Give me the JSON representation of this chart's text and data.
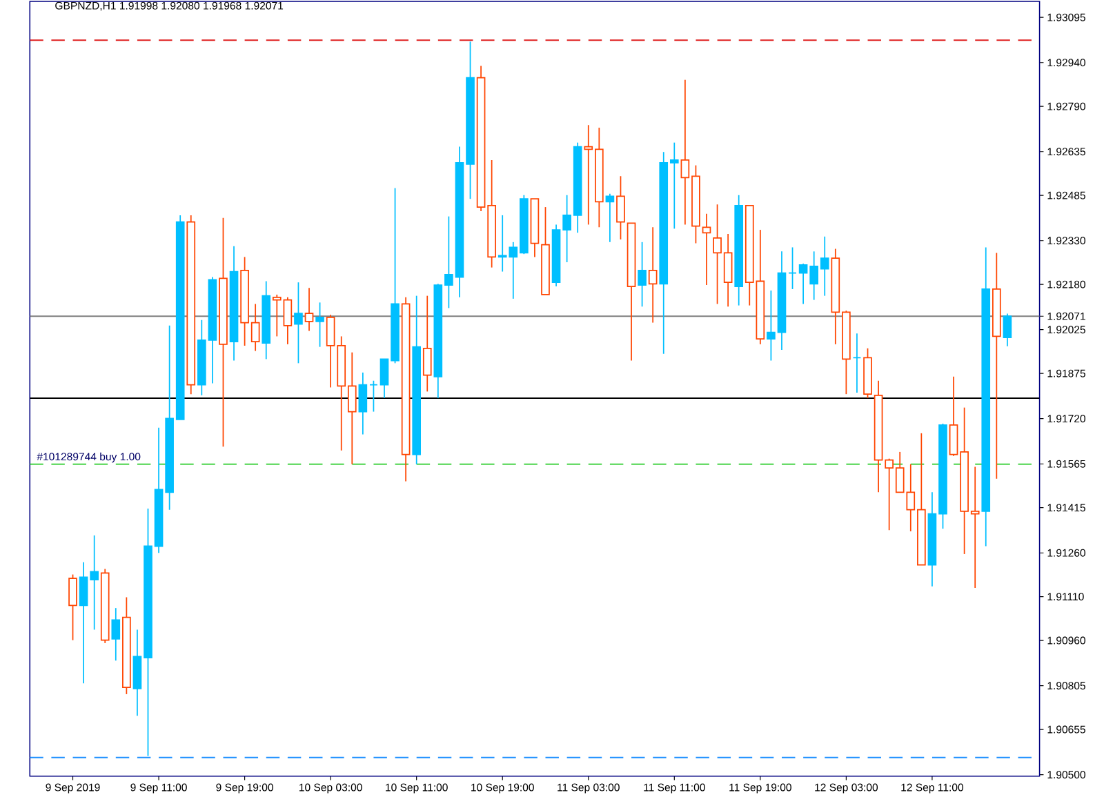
{
  "chart_data": {
    "type": "candlestick",
    "title": "GBPNZD,H1  1.91998 1.92080 1.91968 1.92071",
    "categories": [
      "9 Sep 2019",
      null,
      null,
      null,
      null,
      null,
      null,
      null,
      "9 Sep 11:00",
      null,
      null,
      null,
      null,
      null,
      null,
      null,
      "9 Sep 19:00",
      null,
      null,
      null,
      null,
      null,
      null,
      null,
      "10 Sep 03:00",
      null,
      null,
      null,
      null,
      null,
      null,
      null,
      "10 Sep 11:00",
      null,
      null,
      null,
      null,
      null,
      null,
      null,
      "10 Sep 19:00",
      null,
      null,
      null,
      null,
      null,
      null,
      null,
      "11 Sep 03:00",
      null,
      null,
      null,
      null,
      null,
      null,
      null,
      "11 Sep 11:00",
      null,
      null,
      null,
      null,
      null,
      null,
      null,
      "11 Sep 19:00",
      null,
      null,
      null,
      null,
      null,
      null,
      null,
      "12 Sep 03:00",
      null,
      null,
      null,
      null,
      null,
      null,
      null,
      "12 Sep 11:00",
      null,
      null,
      null,
      null,
      null,
      null,
      null
    ],
    "ohlc": [
      [
        1.91173,
        1.91186,
        1.90961,
        1.9108
      ],
      [
        1.9108,
        1.91228,
        1.90813,
        1.91177
      ],
      [
        1.91168,
        1.9132,
        1.90997,
        1.91196
      ],
      [
        1.91191,
        1.91205,
        1.90951,
        1.90961
      ],
      [
        1.90965,
        1.91071,
        1.90891,
        1.9103
      ],
      [
        1.91039,
        1.91108,
        1.90776,
        1.90799
      ],
      [
        1.90795,
        1.90997,
        1.90702,
        1.90905
      ],
      [
        1.90901,
        1.91412,
        1.90564,
        1.91283
      ],
      [
        1.91283,
        1.91689,
        1.9126,
        1.91477
      ],
      [
        1.91468,
        1.92039,
        1.91408,
        1.91721
      ],
      [
        1.91717,
        1.92417,
        1.91717,
        1.92394
      ],
      [
        1.92394,
        1.92417,
        1.91804,
        1.91836
      ],
      [
        1.91836,
        1.92058,
        1.918,
        1.91989
      ],
      [
        1.91989,
        1.92205,
        1.91841,
        1.92196
      ],
      [
        1.92201,
        1.92408,
        1.91624,
        1.91975
      ],
      [
        1.91984,
        1.92311,
        1.91919,
        1.92224
      ],
      [
        1.92228,
        1.92274,
        1.9197,
        1.92049
      ],
      [
        1.92049,
        1.92113,
        1.91952,
        1.91984
      ],
      [
        1.91979,
        1.92191,
        1.91924,
        1.92141
      ],
      [
        1.92136,
        1.92145,
        1.92002,
        1.92127
      ],
      [
        1.92127,
        1.92136,
        1.91975,
        1.92039
      ],
      [
        1.92044,
        1.92187,
        1.9191,
        1.92081
      ],
      [
        1.92081,
        1.92168,
        1.92021,
        1.92053
      ],
      [
        1.92053,
        1.92118,
        1.91966,
        1.92067
      ],
      [
        1.92067,
        1.92076,
        1.91827,
        1.9197
      ],
      [
        1.9197,
        1.92002,
        1.91611,
        1.91832
      ],
      [
        1.91832,
        1.91947,
        1.91564,
        1.91744
      ],
      [
        1.91744,
        1.91878,
        1.91666,
        1.91836
      ],
      [
        1.91836,
        1.9185,
        1.91744,
        1.91836
      ],
      [
        1.91836,
        1.91924,
        1.9179,
        1.91924
      ],
      [
        1.91919,
        1.9251,
        1.9191,
        1.92113
      ],
      [
        1.92113,
        1.92136,
        1.91505,
        1.91597
      ],
      [
        1.91597,
        1.92141,
        1.91564,
        1.91966
      ],
      [
        1.91961,
        1.92141,
        1.91813,
        1.91869
      ],
      [
        1.91864,
        1.92182,
        1.9179,
        1.92178
      ],
      [
        1.92178,
        1.92413,
        1.92099,
        1.92214
      ],
      [
        1.92205,
        1.92652,
        1.92136,
        1.92597
      ],
      [
        1.92592,
        1.93012,
        1.92473,
        1.92888
      ],
      [
        1.92888,
        1.92929,
        1.92431,
        1.92445
      ],
      [
        1.9245,
        1.92606,
        1.92238,
        1.92274
      ],
      [
        1.92274,
        1.92417,
        1.92224,
        1.92279
      ],
      [
        1.92274,
        1.92325,
        1.92131,
        1.92307
      ],
      [
        1.92288,
        1.92486,
        1.92284,
        1.92473
      ],
      [
        1.92473,
        1.92473,
        1.92274,
        1.92321
      ],
      [
        1.92316,
        1.92445,
        1.92145,
        1.92145
      ],
      [
        1.92187,
        1.92385,
        1.92173,
        1.92367
      ],
      [
        1.92367,
        1.92486,
        1.92256,
        1.92417
      ],
      [
        1.92417,
        1.92666,
        1.92357,
        1.92652
      ],
      [
        1.92652,
        1.92726,
        1.92385,
        1.92643
      ],
      [
        1.92643,
        1.92717,
        1.92376,
        1.92463
      ],
      [
        1.92463,
        1.92491,
        1.92325,
        1.92482
      ],
      [
        1.92482,
        1.92551,
        1.92334,
        1.92394
      ],
      [
        1.9239,
        1.9239,
        1.91919,
        1.92173
      ],
      [
        1.92178,
        1.92325,
        1.92104,
        1.92228
      ],
      [
        1.92228,
        1.92376,
        1.92049,
        1.92182
      ],
      [
        1.92182,
        1.92634,
        1.91942,
        1.92597
      ],
      [
        1.92597,
        1.92666,
        1.92371,
        1.92606
      ],
      [
        1.92606,
        1.92881,
        1.92385,
        1.92546
      ],
      [
        1.92551,
        1.92588,
        1.92321,
        1.9238
      ],
      [
        1.92376,
        1.92422,
        1.92178,
        1.92357
      ],
      [
        1.92339,
        1.92454,
        1.92113,
        1.92288
      ],
      [
        1.92288,
        1.92353,
        1.92104,
        1.92187
      ],
      [
        1.92173,
        1.92486,
        1.92108,
        1.9245
      ],
      [
        1.9245,
        1.9245,
        1.92108,
        1.92187
      ],
      [
        1.92191,
        1.92367,
        1.91975,
        1.91993
      ],
      [
        1.91993,
        1.92159,
        1.91919,
        1.92016
      ],
      [
        1.92016,
        1.92293,
        1.91956,
        1.92219
      ],
      [
        1.92219,
        1.92307,
        1.92164,
        1.92219
      ],
      [
        1.92219,
        1.92251,
        1.92113,
        1.92247
      ],
      [
        1.92182,
        1.92293,
        1.92127,
        1.92242
      ],
      [
        1.92233,
        1.92344,
        1.92141,
        1.9227
      ],
      [
        1.9227,
        1.92302,
        1.91975,
        1.92085
      ],
      [
        1.92085,
        1.9209,
        1.91804,
        1.91924
      ],
      [
        1.91929,
        1.92012,
        1.91809,
        1.91929
      ],
      [
        1.91929,
        1.91961,
        1.9179,
        1.91804
      ],
      [
        1.918,
        1.9185,
        1.91468,
        1.91578
      ],
      [
        1.91578,
        1.91583,
        1.91338,
        1.91551
      ],
      [
        1.91551,
        1.91606,
        1.91468,
        1.91468
      ],
      [
        1.91468,
        1.91564,
        1.91334,
        1.91408
      ],
      [
        1.91408,
        1.9167,
        1.91219,
        1.91219
      ],
      [
        1.91219,
        1.91468,
        1.91145,
        1.91394
      ],
      [
        1.91394,
        1.91703,
        1.91343,
        1.91698
      ],
      [
        1.91698,
        1.91864,
        1.91592,
        1.91597
      ],
      [
        1.91606,
        1.91758,
        1.91256,
        1.91403
      ],
      [
        1.91403,
        1.91555,
        1.9114,
        1.91394
      ],
      [
        1.91403,
        1.92307,
        1.91283,
        1.92164
      ],
      [
        1.92164,
        1.92288,
        1.91514,
        1.92002
      ],
      [
        1.91998,
        1.9208,
        1.91968,
        1.92071
      ]
    ],
    "colors": [
      "#ff4500",
      "#00bfff",
      "#00bfff",
      "#ff4500",
      "#00bfff",
      "#ff4500",
      "#00bfff",
      "#00bfff",
      "#00bfff",
      "#00bfff",
      "#00bfff",
      "#ff4500",
      "#00bfff",
      "#00bfff",
      "#ff4500",
      "#00bfff",
      "#ff4500",
      "#ff4500",
      "#00bfff",
      "#ff4500",
      "#ff4500",
      "#00bfff",
      "#ff4500",
      "#00bfff",
      "#ff4500",
      "#ff4500",
      "#ff4500",
      "#00bfff",
      "#00bfff",
      "#00bfff",
      "#00bfff",
      "#ff4500",
      "#00bfff",
      "#ff4500",
      "#00bfff",
      "#00bfff",
      "#00bfff",
      "#00bfff",
      "#ff4500",
      "#ff4500",
      "#00bfff",
      "#00bfff",
      "#00bfff",
      "#ff4500",
      "#ff4500",
      "#00bfff",
      "#00bfff",
      "#00bfff",
      "#ff4500",
      "#ff4500",
      "#00bfff",
      "#ff4500",
      "#ff4500",
      "#00bfff",
      "#ff4500",
      "#00bfff",
      "#00bfff",
      "#ff4500",
      "#ff4500",
      "#ff4500",
      "#ff4500",
      "#ff4500",
      "#00bfff",
      "#ff4500",
      "#ff4500",
      "#00bfff",
      "#00bfff",
      "#00bfff",
      "#00bfff",
      "#00bfff",
      "#00bfff",
      "#ff4500",
      "#ff4500",
      "#00bfff",
      "#ff4500",
      "#ff4500",
      "#ff4500",
      "#ff4500",
      "#ff4500",
      "#ff4500",
      "#00bfff",
      "#00bfff",
      "#ff4500",
      "#ff4500",
      "#ff4500",
      "#00bfff",
      "#ff4500",
      "#00bfff"
    ],
    "ylim": [
      1.90495,
      1.9315
    ],
    "yticks": [
      1.93095,
      {
        "value": 1.9294,
        "label": "1.92940"
      },
      {
        "value": 1.9279,
        "label": "1.92790"
      },
      1.92635,
      1.92485,
      {
        "value": 1.9233,
        "label": "1.92330"
      },
      {
        "value": 1.9218,
        "label": "1.92180"
      },
      {
        "value": 1.92071,
        "label": "1.92071"
      },
      1.92025,
      1.91875,
      {
        "value": 1.9172,
        "label": "1.91720"
      },
      1.91565,
      1.91415,
      {
        "value": 1.9126,
        "label": "1.91260"
      },
      {
        "value": 1.9111,
        "label": "1.91110"
      },
      {
        "value": 1.9096,
        "label": "1.90960"
      },
      1.90805,
      1.90655,
      {
        "value": 1.905,
        "label": "1.90500"
      }
    ],
    "ref_lines": [
      {
        "axis": "y",
        "value": 1.93017,
        "color": "#e02020",
        "line_style": "dashed"
      },
      {
        "axis": "y",
        "value": 1.92071,
        "color": "#808080",
        "line_style": "solid"
      },
      {
        "axis": "y",
        "value": 1.9179,
        "color": "#000000",
        "line_style": "solid"
      },
      {
        "axis": "y",
        "value": 1.91564,
        "color": "#32cd32",
        "line_style": "dashed",
        "label": "#101289744 buy 1.00"
      },
      {
        "axis": "y",
        "value": 1.90559,
        "color": "#1e90ff",
        "line_style": "dashed"
      }
    ]
  }
}
